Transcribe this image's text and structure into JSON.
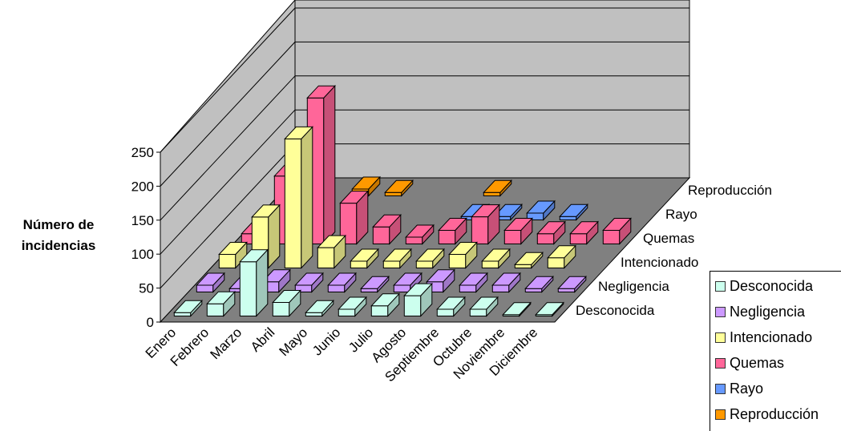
{
  "chart_data": {
    "type": "bar",
    "subtype": "3d-column",
    "ylabel": "Número de incidencias",
    "ylim": [
      0,
      250
    ],
    "yticks": [
      0,
      50,
      100,
      150,
      200,
      250
    ],
    "categories": [
      "Enero",
      "Febrero",
      "Marzo",
      "Abril",
      "Mayo",
      "Junio",
      "Julio",
      "Agosto",
      "Septiembre",
      "Octubre",
      "Noviembre",
      "Diciembre"
    ],
    "series": [
      {
        "name": "Desconocida",
        "color": "#ccffee",
        "values": [
          5,
          18,
          80,
          20,
          5,
          10,
          15,
          30,
          10,
          10,
          2,
          2
        ]
      },
      {
        "name": "Negligencia",
        "color": "#cc99ff",
        "values": [
          10,
          5,
          15,
          10,
          10,
          5,
          10,
          15,
          10,
          10,
          5,
          5
        ]
      },
      {
        "name": "Intencionado",
        "color": "#ffff99",
        "values": [
          20,
          75,
          190,
          30,
          10,
          10,
          10,
          20,
          10,
          5,
          15,
          0
        ]
      },
      {
        "name": "Quemas",
        "color": "#ff6699",
        "values": [
          15,
          100,
          215,
          60,
          25,
          10,
          20,
          40,
          20,
          15,
          15,
          20
        ]
      },
      {
        "name": "Rayo",
        "color": "#6699ff",
        "values": [
          0,
          0,
          0,
          0,
          0,
          0,
          5,
          5,
          10,
          5,
          0,
          0
        ]
      },
      {
        "name": "Reproducción",
        "color": "#ff9900",
        "values": [
          0,
          0,
          10,
          5,
          0,
          0,
          5,
          0,
          0,
          0,
          0,
          0
        ]
      }
    ],
    "legend_position": "bottom-right",
    "grid": true
  }
}
